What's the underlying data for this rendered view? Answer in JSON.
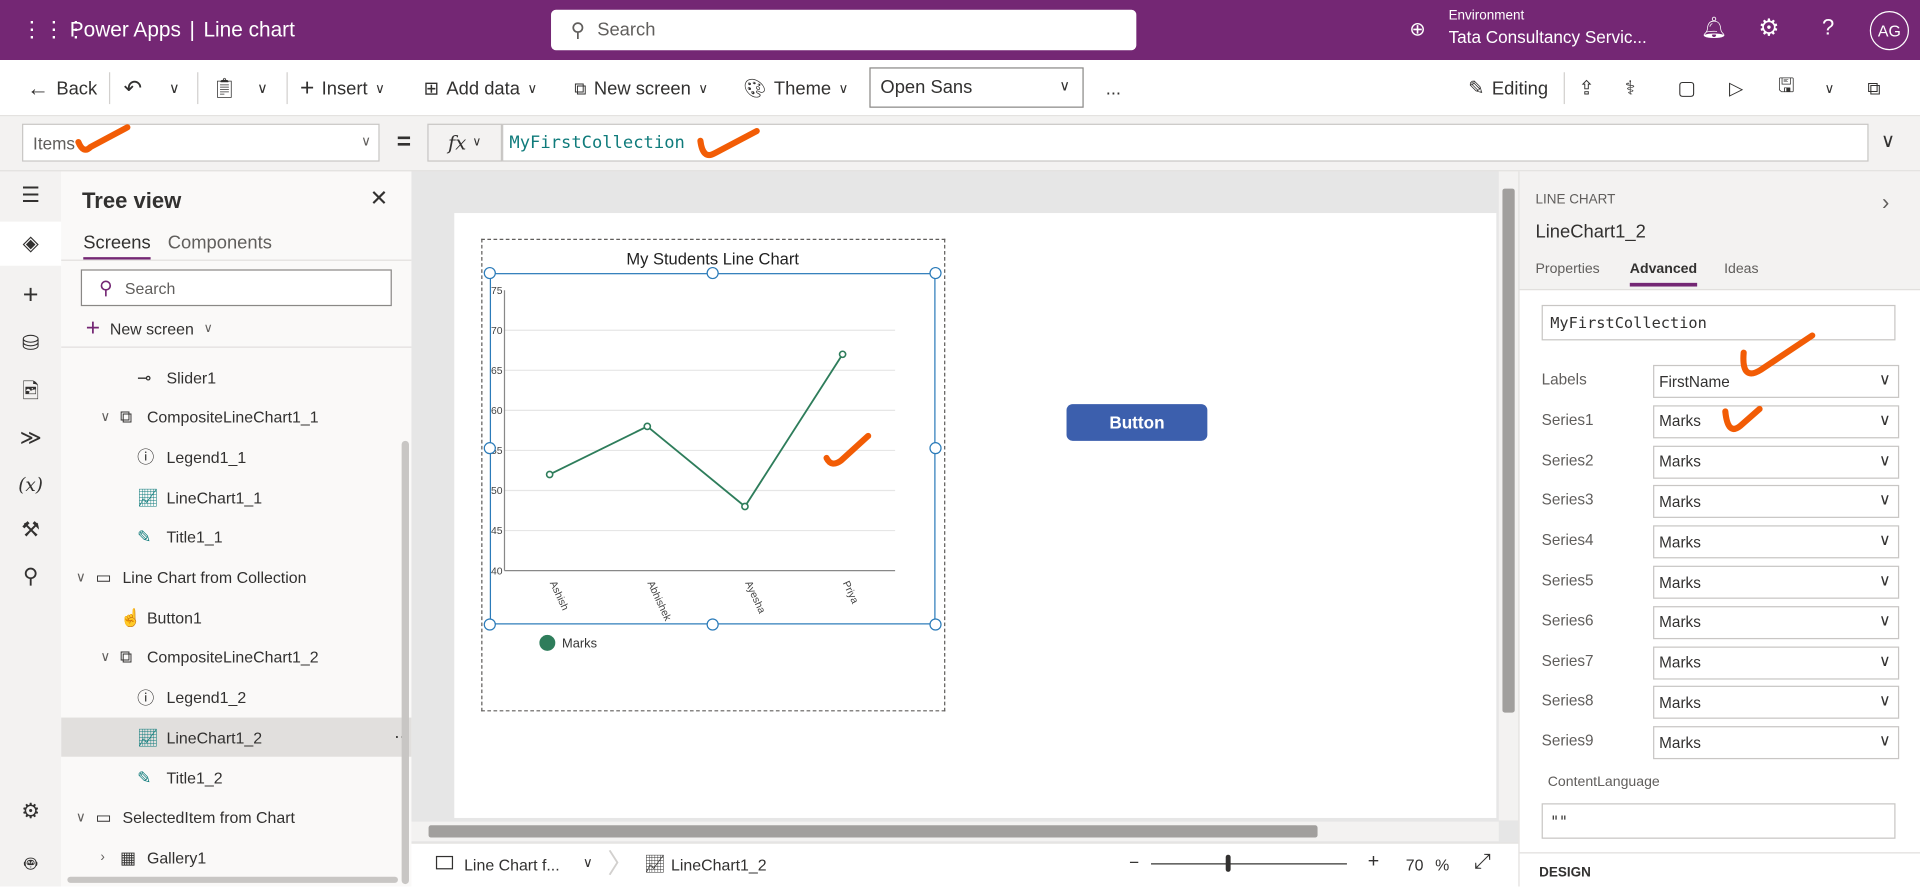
{
  "app": {
    "brand": "Power Apps",
    "separator": "|",
    "title": "Line chart",
    "search_placeholder": "Search",
    "environment_label": "Environment",
    "environment_name": "Tata Consultancy Servic...",
    "avatar": "AG",
    "accent": "#742774"
  },
  "toolbar": {
    "back": "Back",
    "insert": "Insert",
    "add_data": "Add data",
    "new_screen": "New screen",
    "theme": "Theme",
    "font": "Open Sans",
    "more": "...",
    "editing": "Editing"
  },
  "formula": {
    "property": "Items",
    "equals": "=",
    "fx": "fx",
    "value": "MyFirstCollection"
  },
  "tree": {
    "title": "Tree view",
    "tabs": [
      "Screens",
      "Components"
    ],
    "search_placeholder": "Search",
    "new_screen": "New screen",
    "items": [
      {
        "label": "Slider1"
      },
      {
        "label": "CompositeLineChart1_1"
      },
      {
        "label": "Legend1_1"
      },
      {
        "label": "LineChart1_1"
      },
      {
        "label": "Title1_1"
      },
      {
        "label": "Line Chart from Collection"
      },
      {
        "label": "Button1"
      },
      {
        "label": "CompositeLineChart1_2"
      },
      {
        "label": "Legend1_2"
      },
      {
        "label": "LineChart1_2",
        "selected": true
      },
      {
        "label": "Title1_2"
      },
      {
        "label": "SelectedItem from Chart"
      },
      {
        "label": "Gallery1"
      }
    ]
  },
  "canvas": {
    "button_label": "Button",
    "button_color": "#3c5fad"
  },
  "chart_data": {
    "type": "line",
    "title": "My Students Line Chart",
    "categories": [
      "Ashish",
      "Abhishek",
      "Ayesha",
      "Priya"
    ],
    "series": [
      {
        "name": "Marks",
        "values": [
          52,
          58,
          48,
          67
        ],
        "color": "#2e7d5b"
      }
    ],
    "ylim": [
      40,
      75
    ],
    "yticks": [
      "40",
      "45",
      "50",
      "55",
      "60",
      "65",
      "70",
      "75"
    ],
    "grid": true,
    "legend": "bottom-left"
  },
  "status": {
    "screen": "Line Chart f...",
    "control": "LineChart1_2",
    "zoom": "70",
    "zoom_unit": "%",
    "zoom_minus": "−",
    "zoom_plus": "+",
    "zoom_level": 0.38
  },
  "props": {
    "type": "LINE CHART",
    "name": "LineChart1_2",
    "tabs": [
      "Properties",
      "Advanced",
      "Ideas"
    ],
    "items_value": "MyFirstCollection",
    "rows": [
      {
        "label": "Labels",
        "value": "FirstName"
      },
      {
        "label": "Series1",
        "value": "Marks"
      },
      {
        "label": "Series2",
        "value": "Marks"
      },
      {
        "label": "Series3",
        "value": "Marks"
      },
      {
        "label": "Series4",
        "value": "Marks"
      },
      {
        "label": "Series5",
        "value": "Marks"
      },
      {
        "label": "Series6",
        "value": "Marks"
      },
      {
        "label": "Series7",
        "value": "Marks"
      },
      {
        "label": "Series8",
        "value": "Marks"
      },
      {
        "label": "Series9",
        "value": "Marks"
      }
    ],
    "content_language_label": "ContentLanguage",
    "content_language_value": "\"\"",
    "design_label": "DESIGN"
  }
}
